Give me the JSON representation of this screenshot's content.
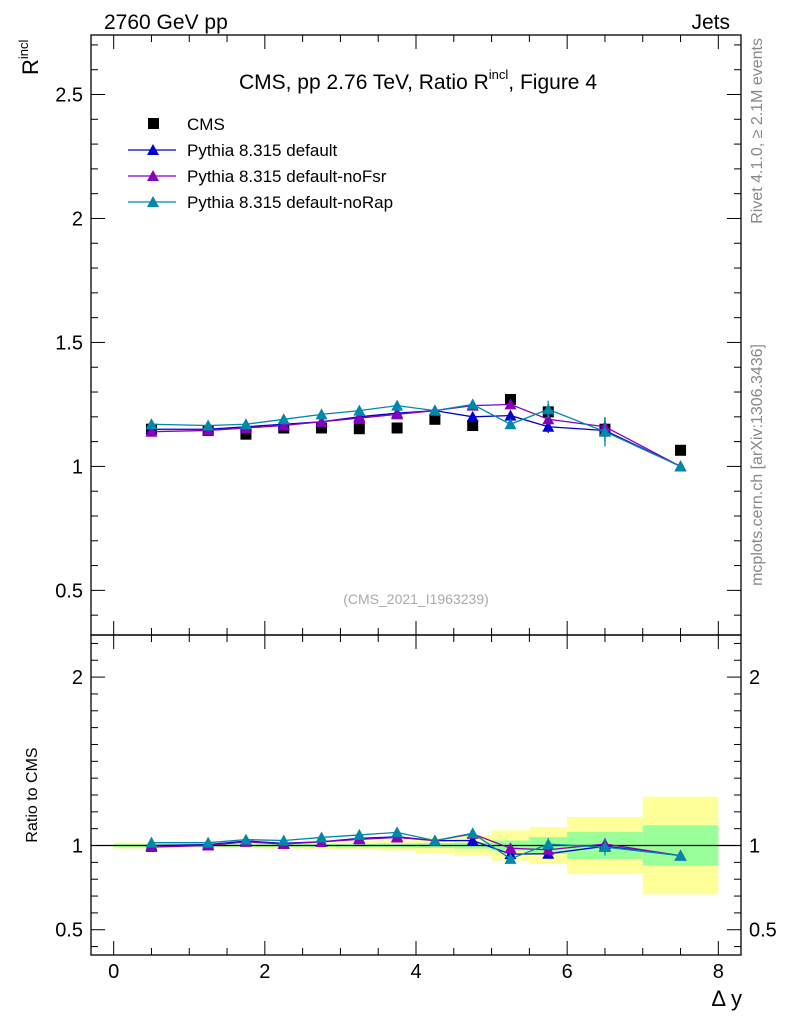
{
  "header": {
    "left_label": "2760 GeV pp",
    "right_label": "Jets"
  },
  "side_labels": {
    "rivet": "Rivet 4.1.0, ≥ 2.1M events",
    "mcplots": "mcplots.cern.ch [arXiv:1306.3436]"
  },
  "chart_data": [
    {
      "type": "line",
      "panel": "main",
      "title_prefix": "CMS, pp 2.76 TeV, Ratio R",
      "title_superscript": "incl",
      "title_suffix": ", Figure 4",
      "ylabel": "R",
      "ylabel_superscript": "incl",
      "xlabel": "Δ y",
      "xlim": [
        -0.3,
        8.3
      ],
      "ylim": [
        0.32,
        2.74
      ],
      "yticks": [
        0.5,
        1,
        1.5,
        2,
        2.5
      ],
      "ytick_labels": [
        "0.5",
        "1",
        "1.5",
        "2",
        "2.5"
      ],
      "watermark": "(CMS_2021_I1963239)",
      "legend_position": "top-left",
      "data": {
        "name": "CMS",
        "color": "#000000",
        "x": [
          0.5,
          1.25,
          1.75,
          2.25,
          2.75,
          3.25,
          3.75,
          4.25,
          4.75,
          5.25,
          5.75,
          6.5,
          7.5
        ],
        "y": [
          1.15,
          1.145,
          1.13,
          1.155,
          1.155,
          1.152,
          1.155,
          1.19,
          1.165,
          1.27,
          1.22,
          1.15,
          1.065
        ]
      },
      "series": [
        {
          "name": "Pythia 8.315 default",
          "color": "#0000cc",
          "x": [
            0.5,
            1.25,
            1.75,
            2.25,
            2.75,
            3.25,
            3.75,
            4.25,
            4.75,
            5.25,
            5.75,
            6.5,
            7.5
          ],
          "y": [
            1.15,
            1.15,
            1.16,
            1.17,
            1.18,
            1.2,
            1.215,
            1.225,
            1.2,
            1.205,
            1.16,
            1.145,
            1.0
          ],
          "err": [
            0.004,
            0.004,
            0.004,
            0.005,
            0.005,
            0.006,
            0.007,
            0.008,
            0.01,
            0.015,
            0.025,
            0.045,
            0.005
          ]
        },
        {
          "name": "Pythia 8.315 default-noFsr",
          "color": "#8800bb",
          "x": [
            0.5,
            1.25,
            1.75,
            2.25,
            2.75,
            3.25,
            3.75,
            4.25,
            4.75,
            5.25,
            5.75,
            6.5,
            7.5
          ],
          "y": [
            1.14,
            1.145,
            1.155,
            1.165,
            1.18,
            1.195,
            1.21,
            1.225,
            1.245,
            1.25,
            1.19,
            1.16,
            1.0
          ],
          "err": [
            0.004,
            0.004,
            0.004,
            0.005,
            0.005,
            0.006,
            0.007,
            0.008,
            0.01,
            0.015,
            0.02,
            0.035,
            0.005
          ]
        },
        {
          "name": "Pythia 8.315 default-noRap",
          "color": "#0088aa",
          "x": [
            0.5,
            1.25,
            1.75,
            2.25,
            2.75,
            3.25,
            3.75,
            4.25,
            4.75,
            5.25,
            5.75,
            6.5,
            7.5
          ],
          "y": [
            1.17,
            1.165,
            1.17,
            1.19,
            1.21,
            1.225,
            1.245,
            1.225,
            1.25,
            1.17,
            1.23,
            1.14,
            1.0
          ],
          "err": [
            0.004,
            0.004,
            0.004,
            0.005,
            0.005,
            0.006,
            0.007,
            0.008,
            0.01,
            0.015,
            0.035,
            0.06,
            0.005
          ]
        }
      ]
    },
    {
      "type": "line",
      "panel": "ratio",
      "ylabel": "Ratio to CMS",
      "xlabel": "Δ y",
      "xlim": [
        -0.3,
        8.3
      ],
      "ylim": [
        0.35,
        2.25
      ],
      "yticks": [
        0.5,
        1,
        2
      ],
      "ytick_labels": [
        "0.5",
        "1",
        "2"
      ],
      "xticks": [
        0,
        2,
        4,
        6,
        8
      ],
      "xtick_labels": [
        "0",
        "2",
        "4",
        "6",
        "8"
      ],
      "bands": {
        "bins": [
          [
            0,
            1
          ],
          [
            1,
            1.5
          ],
          [
            1.5,
            2
          ],
          [
            2,
            2.5
          ],
          [
            2.5,
            3
          ],
          [
            3,
            3.5
          ],
          [
            3.5,
            4
          ],
          [
            4,
            4.5
          ],
          [
            4.5,
            5
          ],
          [
            5,
            5.5
          ],
          [
            5.5,
            6
          ],
          [
            6,
            7
          ],
          [
            7,
            8
          ]
        ],
        "stat_half_width": [
          0.008,
          0.008,
          0.008,
          0.008,
          0.009,
          0.01,
          0.012,
          0.014,
          0.018,
          0.03,
          0.05,
          0.08,
          0.12
        ],
        "total_half_width": [
          0.018,
          0.016,
          0.016,
          0.018,
          0.02,
          0.025,
          0.03,
          0.045,
          0.06,
          0.09,
          0.11,
          0.17,
          0.29
        ],
        "stat_color": "#99ff99",
        "total_color": "#ffff99"
      },
      "series": [
        {
          "name": "Pythia 8.315 default",
          "color": "#0000cc",
          "x": [
            0.5,
            1.25,
            1.75,
            2.25,
            2.75,
            3.25,
            3.75,
            4.25,
            4.75,
            5.25,
            5.75,
            6.5,
            7.5
          ],
          "y": [
            1.0,
            1.005,
            1.027,
            1.013,
            1.022,
            1.042,
            1.052,
            1.029,
            1.03,
            0.949,
            0.951,
            0.996,
            0.94
          ],
          "err": [
            0.004,
            0.004,
            0.004,
            0.005,
            0.005,
            0.006,
            0.007,
            0.008,
            0.01,
            0.012,
            0.02,
            0.04,
            0.005
          ]
        },
        {
          "name": "Pythia 8.315 default-noFsr",
          "color": "#8800bb",
          "x": [
            0.5,
            1.25,
            1.75,
            2.25,
            2.75,
            3.25,
            3.75,
            4.25,
            4.75,
            5.25,
            5.75,
            6.5,
            7.5
          ],
          "y": [
            0.991,
            1.0,
            1.022,
            1.009,
            1.022,
            1.037,
            1.048,
            1.029,
            1.069,
            0.984,
            0.975,
            1.009,
            0.94
          ],
          "err": [
            0.004,
            0.004,
            0.004,
            0.005,
            0.005,
            0.006,
            0.007,
            0.008,
            0.01,
            0.012,
            0.02,
            0.035,
            0.005
          ]
        },
        {
          "name": "Pythia 8.315 default-noRap",
          "color": "#0088aa",
          "x": [
            0.5,
            1.25,
            1.75,
            2.25,
            2.75,
            3.25,
            3.75,
            4.25,
            4.75,
            5.25,
            5.75,
            6.5,
            7.5
          ],
          "y": [
            1.017,
            1.017,
            1.035,
            1.03,
            1.048,
            1.063,
            1.078,
            1.029,
            1.073,
            0.921,
            1.008,
            0.991,
            0.94
          ],
          "err": [
            0.004,
            0.004,
            0.004,
            0.005,
            0.005,
            0.006,
            0.007,
            0.008,
            0.01,
            0.015,
            0.035,
            0.05,
            0.005
          ]
        }
      ]
    }
  ]
}
